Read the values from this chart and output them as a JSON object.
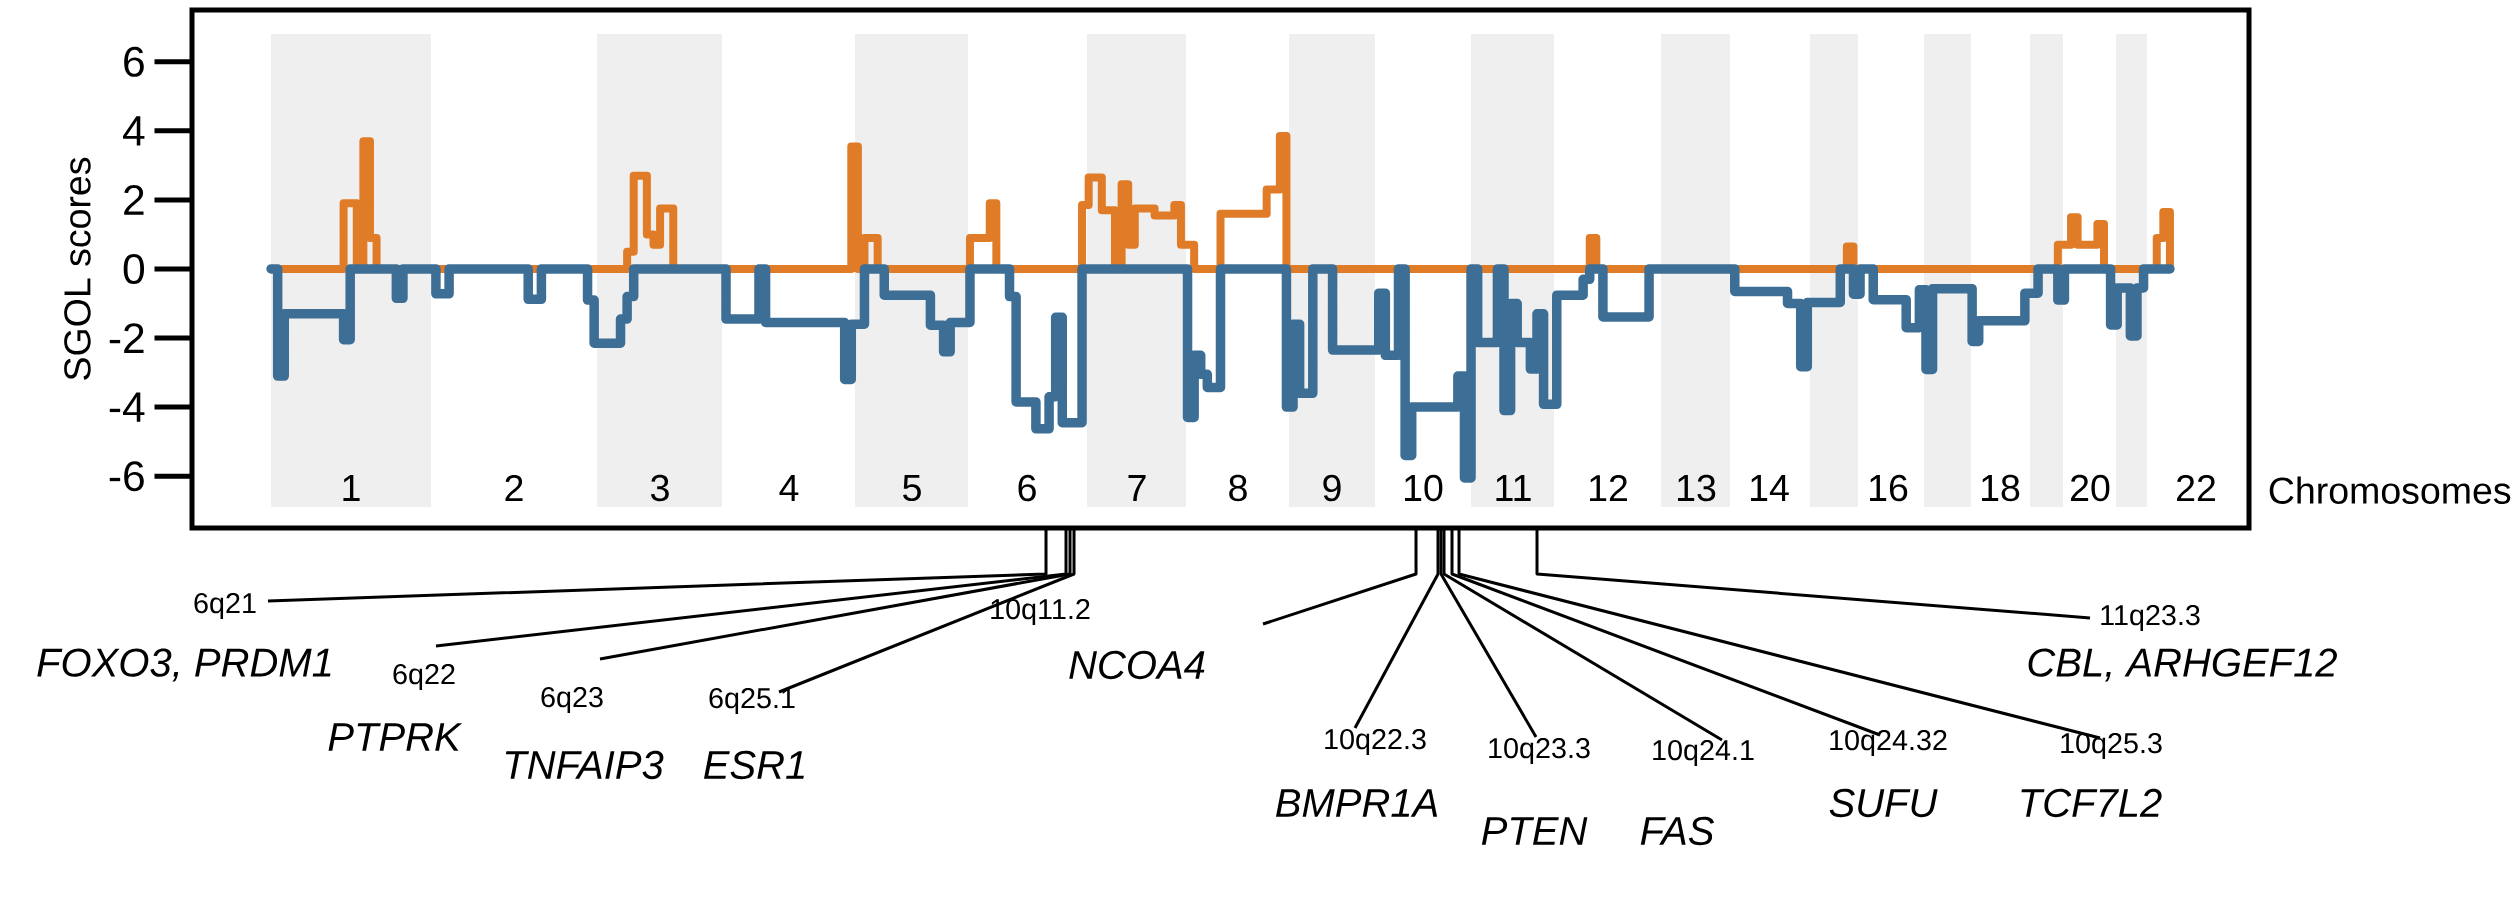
{
  "chart_data": {
    "type": "step",
    "ylabel": "SGOL scores",
    "xlabel": "Chromosomes",
    "ylim": [
      -7.5,
      7.5
    ],
    "yticks": [
      -6,
      -4,
      -2,
      0,
      2,
      4,
      6
    ],
    "grid": false,
    "tick_labels": "y",
    "categories": [
      null,
      null,
      null,
      null,
      null,
      null,
      null,
      null,
      null,
      null,
      null,
      null,
      null,
      null,
      null,
      null,
      null,
      null,
      null,
      null,
      null,
      null,
      null,
      null,
      null,
      null,
      null,
      null,
      null,
      null,
      null,
      null,
      null,
      null,
      null,
      null,
      null,
      null,
      null,
      null,
      null,
      null,
      null,
      null,
      null,
      null,
      null,
      null,
      null,
      null,
      null,
      null,
      null,
      null,
      null,
      null,
      null,
      null,
      null,
      null,
      null,
      null,
      null,
      null,
      null,
      null,
      null,
      null,
      null,
      null,
      null,
      null,
      null,
      null,
      null,
      null,
      null,
      null,
      null,
      null,
      null,
      null,
      null,
      null,
      null,
      null,
      null,
      null,
      null,
      null,
      null,
      null,
      null,
      null,
      null,
      null,
      null,
      null,
      null,
      null,
      null,
      null,
      null,
      null,
      null,
      null,
      null,
      null,
      null,
      null,
      null,
      null,
      null,
      null,
      null,
      null,
      null,
      null,
      null,
      null,
      null,
      null,
      null,
      null,
      null,
      null,
      null,
      null,
      null,
      null,
      null,
      null,
      null,
      null,
      null,
      null,
      null,
      null,
      null,
      null,
      null,
      null,
      null,
      null,
      null,
      null,
      null,
      null,
      null,
      null,
      null,
      null,
      null,
      null,
      null,
      null,
      null,
      null,
      null,
      null,
      null,
      null,
      null,
      null,
      null,
      null,
      null,
      null,
      null,
      null,
      null,
      null,
      null,
      null,
      null,
      null,
      null,
      null,
      null,
      null,
      null,
      null,
      null,
      null,
      null,
      null,
      null,
      null,
      null,
      null,
      null,
      null,
      null,
      null,
      null,
      null,
      null,
      null,
      null,
      null,
      null,
      null,
      null,
      null,
      null,
      null,
      null,
      null,
      null,
      null,
      null,
      null,
      null,
      null,
      null,
      null,
      null,
      null,
      null,
      null,
      null,
      null,
      null,
      null,
      null,
      null,
      null,
      null,
      null,
      null,
      null,
      null,
      null,
      null,
      null,
      null,
      null,
      null,
      null,
      null,
      null,
      null,
      null,
      null,
      null,
      null,
      null,
      null,
      null,
      null,
      null,
      null,
      null,
      null,
      null,
      null,
      null,
      null,
      null,
      null,
      null,
      null,
      null,
      null,
      null,
      null,
      null,
      null,
      null,
      null,
      null,
      null,
      null,
      null,
      null,
      null,
      null,
      null,
      null,
      null,
      null,
      null,
      null,
      null,
      null,
      null,
      null,
      null,
      null
    ],
    "series": [
      {
        "color": "#e07c28",
        "values": [
          0,
          0,
          0,
          0,
          0,
          0,
          0,
          0,
          0,
          0,
          0,
          1.9,
          1.9,
          0,
          3.7,
          0.9,
          0,
          0,
          0,
          0,
          0,
          0,
          0,
          0,
          0,
          0,
          0,
          0,
          0,
          0,
          0,
          0,
          0,
          0,
          0,
          0,
          0,
          0,
          0,
          0,
          0,
          0,
          0,
          0,
          0,
          0,
          0,
          0,
          0,
          0,
          0,
          0,
          0,
          0,
          0.5,
          2.7,
          2.7,
          1.0,
          0.7,
          1.75,
          1.75,
          0,
          0,
          0,
          0,
          0,
          0,
          0,
          0,
          0,
          0,
          0,
          0,
          0,
          0,
          0,
          0,
          0,
          0,
          0,
          0,
          0,
          0,
          0,
          0,
          0,
          0,
          0,
          3.55,
          0,
          0.9,
          0.9,
          0,
          0,
          0,
          0,
          0,
          0,
          0,
          0,
          0,
          0,
          0,
          0,
          0,
          0,
          0.9,
          0.9,
          0.9,
          1.9,
          0,
          0,
          0,
          0,
          0,
          0,
          0,
          0,
          0,
          0,
          0,
          0,
          0,
          1.85,
          2.65,
          2.65,
          1.7,
          1.7,
          0,
          2.45,
          0.7,
          1.75,
          1.75,
          1.75,
          1.55,
          1.55,
          1.55,
          1.85,
          0.7,
          0.7,
          0,
          0,
          0,
          0,
          1.6,
          1.6,
          1.6,
          1.6,
          1.6,
          1.6,
          1.6,
          2.3,
          2.3,
          3.85,
          0,
          0,
          0,
          0,
          0,
          0,
          0,
          0,
          0,
          0,
          0,
          0,
          0,
          0,
          0,
          0,
          0,
          0,
          0,
          0,
          0,
          0,
          0,
          0,
          0,
          0,
          0,
          0,
          0,
          0,
          0,
          0,
          0,
          0,
          0,
          0,
          0,
          0,
          0,
          0,
          0,
          0,
          0,
          0,
          0,
          0,
          0.9,
          0,
          0,
          0,
          0,
          0,
          0,
          0,
          0,
          0,
          0,
          0,
          0,
          0,
          0,
          0,
          0,
          0,
          0,
          0,
          0,
          0,
          0,
          0,
          0,
          0,
          0,
          0,
          0,
          0,
          0,
          0,
          0,
          0,
          0,
          0,
          0,
          0,
          0,
          0.65,
          0,
          0,
          0,
          0,
          0,
          0,
          0,
          0,
          0,
          0,
          0,
          0,
          0,
          0,
          0,
          0,
          0,
          0,
          0,
          0,
          0,
          0,
          0,
          0,
          0,
          0,
          0,
          0,
          0,
          0,
          0,
          0.7,
          0.7,
          1.5,
          0.7,
          0.7,
          0.7,
          1.3,
          0,
          0,
          0,
          0,
          0,
          0,
          0,
          0,
          0.9,
          1.65,
          0
        ]
      },
      {
        "color": "#3d6f96",
        "values": [
          0,
          -3.1,
          -1.3,
          -1.3,
          -1.3,
          -1.3,
          -1.3,
          -1.3,
          -1.3,
          -1.3,
          -1.3,
          -2.05,
          0,
          0,
          0,
          0,
          0,
          0,
          0,
          -0.85,
          0,
          0,
          0,
          0,
          0,
          -0.72,
          -0.72,
          0,
          0,
          0,
          0,
          0,
          0,
          0,
          0,
          0,
          0,
          0,
          0,
          -0.88,
          -0.88,
          0,
          0,
          0,
          0,
          0,
          0,
          0,
          -0.9,
          -2.15,
          -2.15,
          -2.15,
          -2.15,
          -1.45,
          -0.8,
          0,
          0,
          0,
          0,
          0,
          0,
          0,
          0,
          0,
          0,
          0,
          0,
          0,
          0,
          -1.45,
          -1.45,
          -1.45,
          -1.45,
          -1.45,
          0,
          -1.55,
          -1.55,
          -1.55,
          -1.55,
          -1.55,
          -1.55,
          -1.55,
          -1.55,
          -1.55,
          -1.55,
          -1.55,
          -1.55,
          -3.2,
          -1.6,
          -1.6,
          0,
          0,
          0,
          -0.76,
          -0.76,
          -0.76,
          -0.76,
          -0.76,
          -0.76,
          -0.76,
          -1.63,
          -1.63,
          -2.4,
          -1.55,
          -1.55,
          -1.55,
          0,
          0,
          0,
          0,
          0,
          0,
          -0.8,
          -3.85,
          -3.85,
          -3.85,
          -4.63,
          -4.63,
          -3.7,
          -1.4,
          -4.45,
          -4.45,
          -4.45,
          0,
          0,
          0,
          0,
          0,
          0,
          0,
          0,
          0,
          0,
          0,
          0,
          0,
          0,
          0,
          0,
          -4.3,
          -2.5,
          -3.05,
          -3.43,
          -3.43,
          0,
          0,
          0,
          0,
          0,
          0,
          0,
          0,
          0,
          0,
          -4.0,
          -1.6,
          -3.6,
          -3.6,
          0,
          0,
          0,
          -2.35,
          -2.35,
          -2.35,
          -2.35,
          -2.35,
          -2.35,
          -2.35,
          -0.7,
          -2.5,
          -2.5,
          0,
          -5.4,
          -4.0,
          -4.0,
          -4.0,
          -4.0,
          -4.0,
          -4.0,
          -4.0,
          -3.1,
          -6.05,
          0,
          -2.13,
          -2.13,
          -2.13,
          0,
          -4.1,
          -1.0,
          -2.13,
          -2.13,
          -2.9,
          -1.3,
          -3.92,
          -3.92,
          -0.76,
          -0.76,
          -0.76,
          -0.76,
          -0.3,
          0,
          0,
          -1.39,
          -1.39,
          -1.39,
          -1.39,
          -1.39,
          -1.39,
          -1.39,
          0,
          0,
          0,
          0,
          0,
          0,
          0,
          0,
          0,
          0,
          0,
          0,
          0,
          -0.65,
          -0.65,
          -0.65,
          -0.65,
          -0.65,
          -0.65,
          -0.65,
          -0.65,
          -1.0,
          -1.0,
          -2.83,
          -0.97,
          -0.97,
          -0.97,
          -0.97,
          -0.97,
          0,
          0,
          -0.73,
          0,
          0,
          -0.89,
          -0.89,
          -0.89,
          -0.89,
          -0.89,
          -1.7,
          -1.7,
          -0.6,
          -2.91,
          -0.57,
          -0.57,
          -0.57,
          -0.57,
          -0.57,
          -0.57,
          -2.1,
          -1.5,
          -1.5,
          -1.5,
          -1.5,
          -1.5,
          -1.5,
          -1.5,
          -0.7,
          -0.7,
          0,
          0,
          0,
          -0.9,
          0,
          0,
          0,
          0,
          0,
          0,
          0,
          -1.62,
          -0.55,
          -0.55,
          -1.94,
          -0.55,
          0,
          0,
          0,
          0,
          0
        ]
      }
    ],
    "annotations": [
      "1",
      "2",
      "3",
      "4",
      "5",
      "6",
      "7",
      "8",
      "9",
      "10",
      "11",
      "12",
      "13",
      "14",
      "16",
      "18",
      "20",
      "22",
      "6q21",
      "FOXO3, PRDM1",
      "6q22",
      "PTPRK",
      "6q23",
      "TNFAIP3",
      "6q25.1",
      "ESR1",
      "10q11.2",
      "NCOA4",
      "10q22.3",
      "BMPR1A",
      "10q23.3",
      "PTEN",
      "10q24.1",
      "FAS",
      "10q24.32",
      "SUFU",
      "10q25.3",
      "TCF7L2",
      "11q23.3",
      "CBL, ARHGEF12"
    ]
  }
}
